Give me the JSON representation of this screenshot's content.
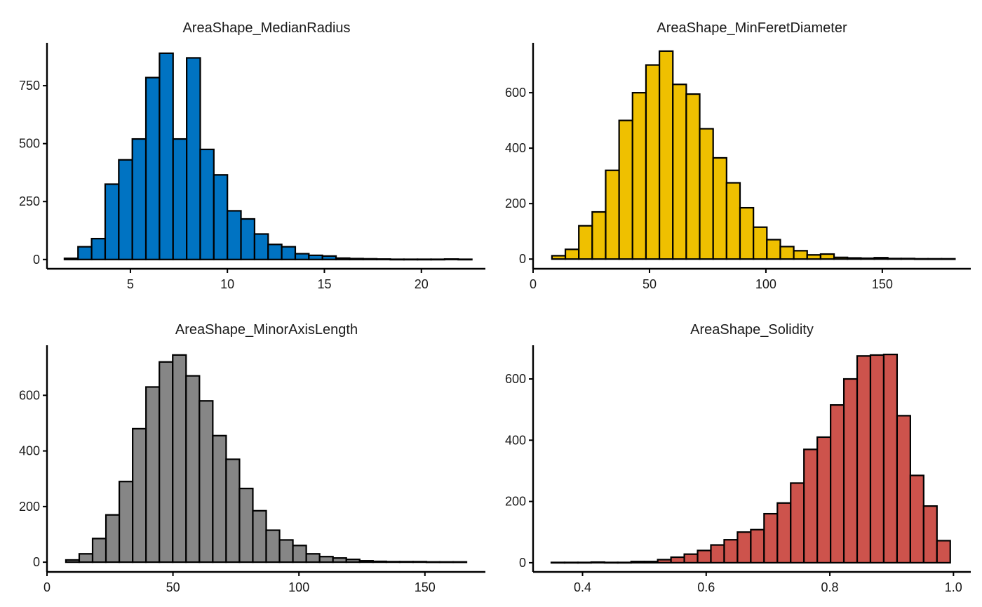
{
  "chart_data": [
    {
      "type": "bar",
      "title": "AreaShape_MedianRadius",
      "xlabel": "",
      "ylabel": "",
      "color": "#0073C2",
      "xlim": [
        0.7,
        23.3
      ],
      "ylim": [
        -40,
        935
      ],
      "x_ticks": [
        5,
        10,
        15,
        20
      ],
      "y_ticks": [
        0,
        250,
        500,
        750
      ],
      "bins": {
        "start": 1.6,
        "width": 0.7,
        "values": [
          5,
          55,
          90,
          325,
          430,
          520,
          785,
          890,
          520,
          870,
          475,
          365,
          210,
          175,
          110,
          65,
          55,
          25,
          18,
          15,
          6,
          4,
          3,
          2,
          1,
          1,
          1,
          1,
          2,
          1
        ]
      }
    },
    {
      "type": "bar",
      "title": "AreaShape_MinFeretDiameter",
      "xlabel": "",
      "ylabel": "",
      "color": "#EFC000",
      "xlim": [
        0,
        188
      ],
      "ylim": [
        -35,
        780
      ],
      "x_ticks": [
        0,
        50,
        100,
        150
      ],
      "y_ticks": [
        0,
        200,
        400,
        600
      ],
      "bins": {
        "start": 8.1,
        "width": 5.77,
        "values": [
          12,
          35,
          120,
          170,
          320,
          500,
          600,
          700,
          750,
          630,
          595,
          470,
          365,
          275,
          185,
          115,
          70,
          45,
          30,
          15,
          18,
          6,
          4,
          3,
          5,
          2,
          2,
          1,
          1,
          1
        ]
      }
    },
    {
      "type": "bar",
      "title": "AreaShape_MinorAxisLength",
      "xlabel": "",
      "ylabel": "",
      "color": "#868686",
      "xlim": [
        0,
        174
      ],
      "ylim": [
        -35,
        780
      ],
      "x_ticks": [
        0,
        50,
        100,
        150
      ],
      "y_ticks": [
        0,
        200,
        400,
        600
      ],
      "bins": {
        "start": 7.5,
        "width": 5.3,
        "values": [
          8,
          30,
          85,
          170,
          290,
          480,
          630,
          720,
          745,
          670,
          580,
          455,
          370,
          265,
          185,
          115,
          80,
          60,
          30,
          20,
          15,
          10,
          5,
          3,
          2,
          2,
          2,
          1,
          1,
          1
        ]
      }
    },
    {
      "type": "bar",
      "title": "AreaShape_Solidity",
      "xlabel": "",
      "ylabel": "",
      "color": "#CD534C",
      "xlim": [
        0.32,
        1.028
      ],
      "ylim": [
        -30,
        710
      ],
      "x_ticks": [
        0.4,
        0.6,
        0.8,
        1.0
      ],
      "y_ticks": [
        0,
        200,
        400,
        600
      ],
      "bins": {
        "start": 0.3495,
        "width": 0.02151,
        "values": [
          1,
          1,
          1,
          2,
          1,
          1,
          4,
          4,
          10,
          18,
          28,
          40,
          58,
          75,
          100,
          108,
          160,
          195,
          260,
          370,
          410,
          515,
          600,
          675,
          678,
          680,
          480,
          285,
          185,
          72
        ]
      }
    }
  ]
}
